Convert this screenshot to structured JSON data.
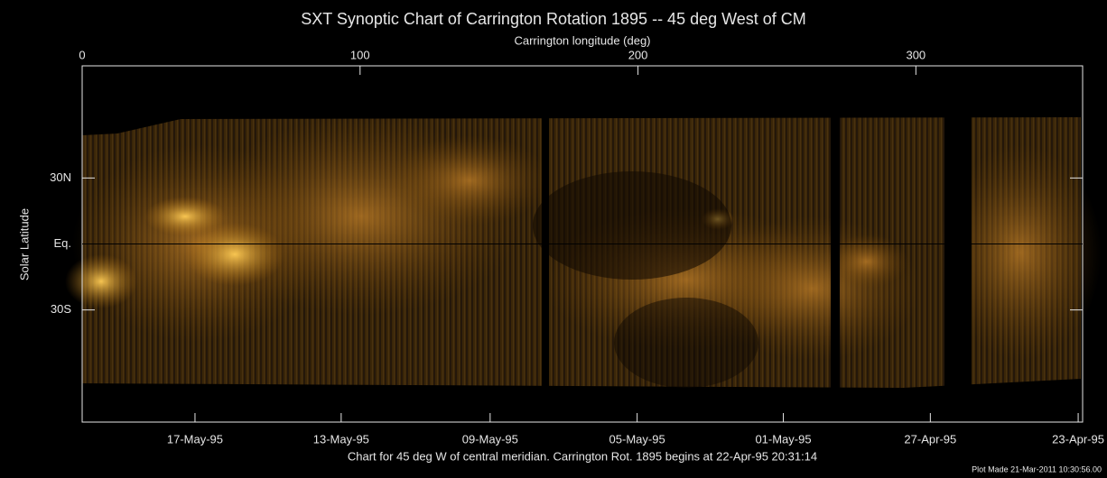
{
  "chart_data": {
    "type": "image",
    "title": "SXT Synoptic Chart of Carrington Rotation 1895 -- 45 deg West of CM",
    "x_label": "Carrington longitude (deg)",
    "y_label": "Solar Latitude",
    "caption": "Chart for 45 deg W of central meridian.  Carrington Rot. 1895 begins at 22-Apr-95 20:31:14",
    "footer": "Plot Made 21-Mar-2011 10:30:56.00",
    "xlim": [
      0,
      360
    ],
    "xticks": [
      0,
      100,
      200,
      300
    ],
    "x2ticks": [
      {
        "value": 40.6,
        "label": "17-May-95"
      },
      {
        "value": 93.2,
        "label": "13-May-95"
      },
      {
        "value": 146.8,
        "label": "09-May-95"
      },
      {
        "value": 199.7,
        "label": "05-May-95"
      },
      {
        "value": 252.3,
        "label": "01-May-95"
      },
      {
        "value": 305.2,
        "label": "27-Apr-95"
      },
      {
        "value": 358.4,
        "label": "23-Apr-95"
      }
    ],
    "ylim": [
      -81,
      81
    ],
    "yticks": [
      {
        "value": 30,
        "label": "30N"
      },
      {
        "value": 0,
        "label": "Eq."
      },
      {
        "value": -30,
        "label": "30S"
      }
    ]
  }
}
